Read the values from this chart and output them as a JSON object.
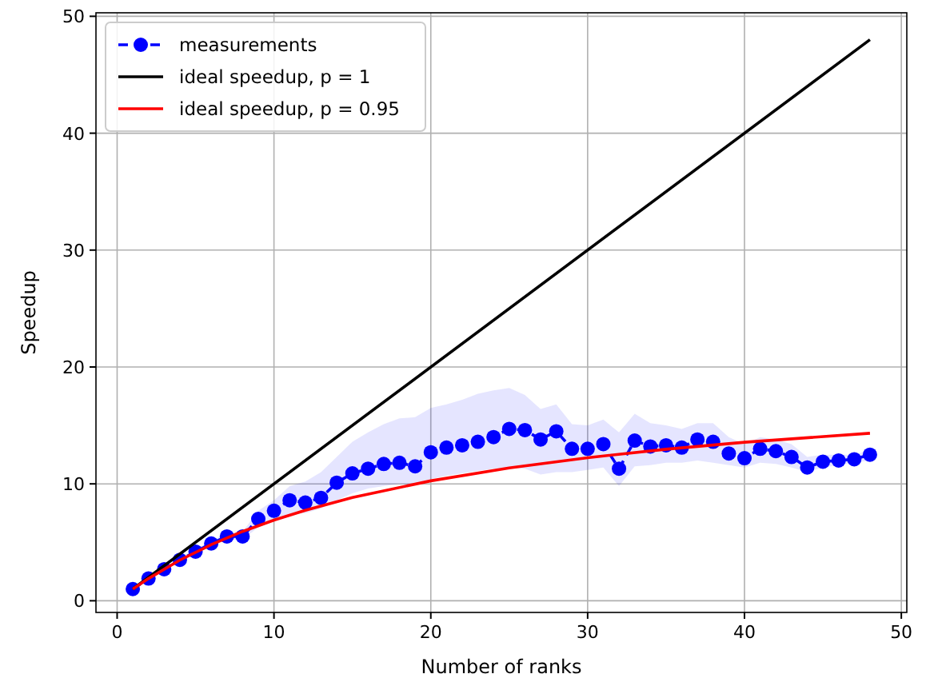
{
  "chart_data": {
    "type": "line",
    "xlabel": "Number of ranks",
    "ylabel": "Speedup",
    "xlim": [
      -1.35,
      50.35
    ],
    "ylim": [
      -1,
      50.3
    ],
    "xticks": [
      0,
      10,
      20,
      30,
      40,
      50
    ],
    "yticks": [
      0,
      10,
      20,
      30,
      40,
      50
    ],
    "grid": true,
    "legend": "top left",
    "series": [
      {
        "name": "measurements",
        "color": "#0000ff",
        "marker": "circle",
        "line_style": "dashed",
        "x": [
          1,
          2,
          3,
          4,
          5,
          6,
          7,
          8,
          9,
          10,
          11,
          12,
          13,
          14,
          15,
          16,
          17,
          18,
          19,
          20,
          21,
          22,
          23,
          24,
          25,
          26,
          27,
          28,
          29,
          30,
          31,
          32,
          33,
          34,
          35,
          36,
          37,
          38,
          39,
          40,
          41,
          42,
          43,
          44,
          45,
          46,
          47,
          48
        ],
        "values": [
          1.0,
          1.9,
          2.7,
          3.5,
          4.2,
          4.9,
          5.5,
          5.5,
          7.0,
          7.7,
          8.6,
          8.4,
          8.8,
          10.1,
          10.9,
          11.3,
          11.7,
          11.8,
          11.5,
          12.7,
          13.1,
          13.3,
          13.6,
          14.0,
          14.7,
          14.6,
          13.8,
          14.5,
          13.0,
          13.0,
          13.4,
          11.3,
          13.7,
          13.2,
          13.3,
          13.1,
          13.8,
          13.6,
          12.6,
          12.2,
          13.0,
          12.8,
          12.3,
          11.4,
          11.9,
          12.0,
          12.1,
          12.5
        ],
        "lower": [
          0.9,
          1.8,
          2.6,
          3.3,
          4.0,
          4.7,
          5.2,
          5.2,
          6.3,
          6.8,
          7.4,
          7.5,
          7.9,
          8.6,
          9.2,
          9.6,
          9.8,
          10.0,
          9.9,
          10.4,
          10.7,
          10.9,
          11.1,
          11.3,
          11.4,
          11.3,
          10.8,
          11.0,
          11.0,
          11.2,
          11.4,
          9.8,
          11.5,
          11.6,
          11.8,
          11.8,
          12.0,
          11.8,
          11.6,
          11.4,
          11.8,
          11.7,
          11.4,
          11.0,
          11.4,
          11.6,
          11.8,
          12.0
        ],
        "upper": [
          1.1,
          2.0,
          2.8,
          3.7,
          4.4,
          5.1,
          5.8,
          5.9,
          7.7,
          8.6,
          9.8,
          10.2,
          11.0,
          12.3,
          13.6,
          14.4,
          15.1,
          15.6,
          15.7,
          16.5,
          16.8,
          17.2,
          17.7,
          18.0,
          18.2,
          17.6,
          16.4,
          16.8,
          15.1,
          15.0,
          15.5,
          14.4,
          16.0,
          15.2,
          15.0,
          14.7,
          15.2,
          15.2,
          14.0,
          13.4,
          14.0,
          13.8,
          13.4,
          12.3,
          12.5,
          12.5,
          12.5,
          12.9
        ]
      },
      {
        "name": "ideal speedup, p = 1",
        "color": "#000000",
        "marker": "none",
        "line_style": "solid",
        "x": [
          1,
          48
        ],
        "values": [
          1,
          48
        ]
      },
      {
        "name": "ideal speedup, p = 0.95",
        "color": "#ff0000",
        "marker": "none",
        "line_style": "solid",
        "x": [
          1,
          2,
          4,
          6,
          8,
          10,
          12,
          15,
          20,
          25,
          30,
          35,
          40,
          48
        ],
        "values": [
          1.0,
          1.9,
          3.48,
          4.8,
          5.93,
          6.9,
          7.74,
          8.83,
          10.26,
          11.36,
          12.24,
          12.96,
          13.56,
          14.33
        ]
      }
    ]
  }
}
